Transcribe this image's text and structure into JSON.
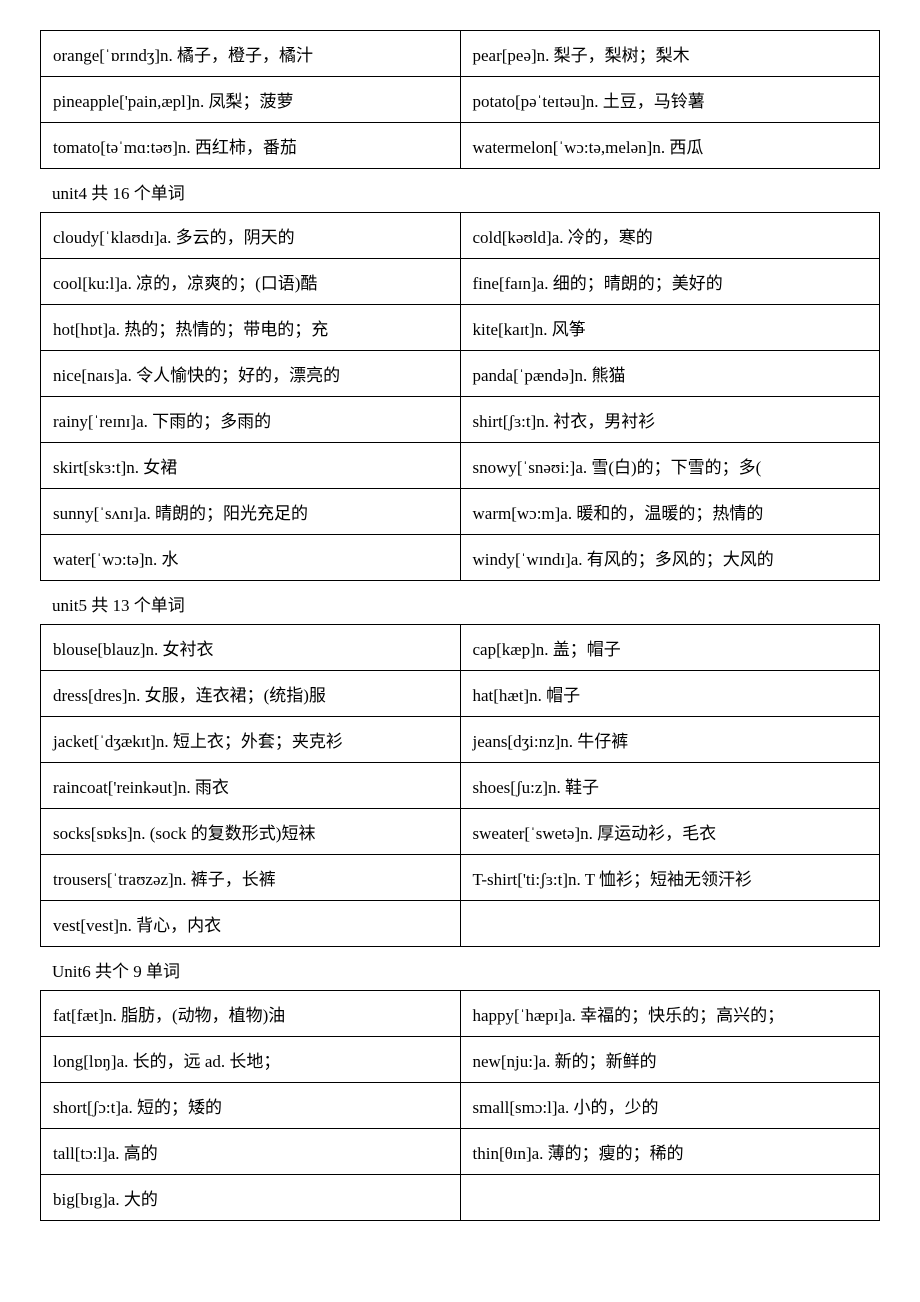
{
  "sections": [
    {
      "rows": [
        {
          "left": "orange[ˈɒrɪndʒ]n. 橘子，橙子，橘汁",
          "right": "pear[peə]n. 梨子，梨树；梨木"
        },
        {
          "left": "pineapple['pain,æpl]n. 凤梨；菠萝",
          "right": "potato[pəˈteɪtəu]n. 土豆，马铃薯"
        },
        {
          "left": "tomato[təˈmɑ:təʊ]n. 西红柿，番茄",
          "right": "watermelon[ˈwɔ:tə,melən]n. 西瓜"
        }
      ]
    },
    {
      "header": "unit4 共 16 个单词",
      "rows": [
        {
          "left": "cloudy[ˈklaʊdɪ]a. 多云的，阴天的",
          "right": "cold[kəʊld]a. 冷的，寒的"
        },
        {
          "left": "cool[ku:l]a. 凉的，凉爽的；(口语)酷",
          "right": "fine[faɪn]a. 细的；晴朗的；美好的"
        },
        {
          "left": "hot[hɒt]a. 热的；热情的；带电的；充",
          "right": "kite[kaɪt]n. 风筝"
        },
        {
          "left": "nice[naɪs]a. 令人愉快的；好的，漂亮的",
          "right": "panda[ˈpændə]n. 熊猫"
        },
        {
          "left": "rainy[ˈreɪnɪ]a. 下雨的；多雨的",
          "right": "shirt[ʃɜ:t]n. 衬衣，男衬衫"
        },
        {
          "left": "skirt[skɜ:t]n. 女裙",
          "right": "snowy[ˈsnəʊi:]a. 雪(白)的；下雪的；多("
        },
        {
          "left": "sunny[ˈsʌnɪ]a. 晴朗的；阳光充足的",
          "right": "warm[wɔ:m]a. 暖和的，温暖的；热情的"
        },
        {
          "left": "water[ˈwɔ:tə]n. 水",
          "right": "windy[ˈwɪndɪ]a. 有风的；多风的；大风的"
        }
      ]
    },
    {
      "header": "unit5 共 13 个单词",
      "rows": [
        {
          "left": "blouse[blauz]n. 女衬衣",
          "right": "cap[kæp]n. 盖；帽子"
        },
        {
          "left": "dress[dres]n. 女服，连衣裙；(统指)服",
          "right": "hat[hæt]n. 帽子"
        },
        {
          "left": "jacket[ˈdʒækɪt]n. 短上衣；外套；夹克衫",
          "right": "jeans[dʒi:nz]n. 牛仔裤"
        },
        {
          "left": "raincoat['reinkəut]n. 雨衣",
          "right": "shoes[ʃu:z]n. 鞋子"
        },
        {
          "left": "socks[sɒks]n. (sock 的复数形式)短袜",
          "right": "sweater[ˈswetə]n. 厚运动衫，毛衣"
        },
        {
          "left": "trousers[ˈtraʊzəz]n. 裤子，长裤",
          "right": "T-shirt['ti:ʃɜ:t]n. T 恤衫；短袖无领汗衫"
        },
        {
          "left": "vest[vest]n. 背心，内衣",
          "right": ""
        }
      ]
    },
    {
      "header": "Unit6 共个 9 单词",
      "rows": [
        {
          "left": "fat[fæt]n. 脂肪，(动物，植物)油",
          "right": "happy[ˈhæpɪ]a. 幸福的；快乐的；高兴的；"
        },
        {
          "left": "long[lɒŋ]a. 长的，远 ad. 长地；",
          "right": "new[nju:]a. 新的；新鲜的"
        },
        {
          "left": "short[ʃɔ:t]a. 短的；矮的",
          "right": "small[smɔ:l]a. 小的，少的"
        },
        {
          "left": "tall[tɔ:l]a. 高的",
          "right": "thin[θɪn]a. 薄的；瘦的；稀的"
        },
        {
          "left": "big[bɪg]a. 大的",
          "right": ""
        }
      ]
    }
  ],
  "style": {
    "font_size": 17,
    "cell_padding": "10px 12px",
    "border_color": "#000000",
    "background_color": "#ffffff",
    "text_color": "#000000"
  }
}
